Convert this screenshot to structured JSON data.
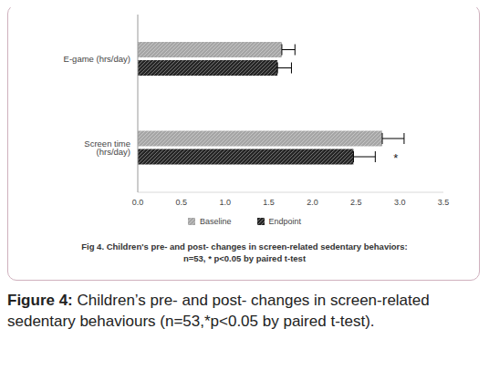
{
  "chart_data": {
    "type": "bar",
    "orientation": "horizontal",
    "title": [
      "Fig 4. Children's pre- and post- changes in screen-related sedentary behaviors:",
      "n=53, * p<0.05 by paired t-test"
    ],
    "categories": [
      "E-game (hrs/day)",
      "Screen time (hrs/day)"
    ],
    "series": [
      {
        "name": "Baseline",
        "color": "#a6a6a6",
        "values": [
          1.65,
          2.8
        ],
        "errors": [
          0.15,
          0.25
        ]
      },
      {
        "name": "Endpoint",
        "color": "#262626",
        "values": [
          1.6,
          2.47
        ],
        "errors": [
          0.16,
          0.25
        ]
      }
    ],
    "xlim": [
      0,
      3.5
    ],
    "xticks": [
      {
        "value": 0,
        "label": "0.0"
      },
      0.5,
      {
        "value": 1,
        "label": "1.0"
      },
      1.5,
      {
        "value": 2,
        "label": "2.0"
      },
      2.5,
      {
        "value": 3,
        "label": "3.0"
      },
      3.5
    ],
    "grid": false,
    "legend": "bottom",
    "annotations": [
      {
        "text": "*",
        "category": "Screen time (hrs/day)",
        "series": "Endpoint"
      }
    ]
  },
  "figure_caption": {
    "label": "Figure 4:",
    "text": "Children’s pre- and post- changes in screen-related sedentary behaviours (n=53,*p<0.05 by paired t-test)."
  }
}
